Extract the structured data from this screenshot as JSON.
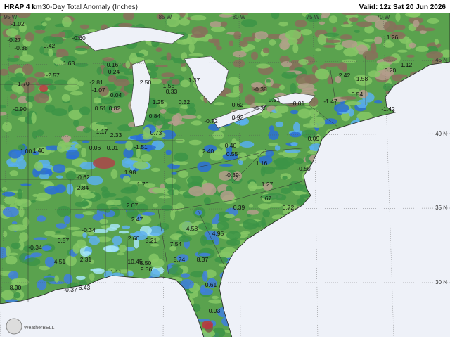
{
  "header": {
    "model": "HRAP 4 km",
    "product": "30-Day Total Anomaly (Inches)",
    "valid": "Valid: 12z Sat 20 Jun 2026"
  },
  "lon_labels": [
    "95 W",
    "85 W",
    "80 W",
    "75 W",
    "70 W"
  ],
  "lat_labels": [
    "45 N",
    "40 N",
    "35 N",
    "30 N"
  ],
  "logo": "WeatherBELL",
  "values": [
    "-1.02",
    "-0.27",
    "-0.38",
    "0.42",
    "-0.60",
    "1.63",
    "-2.57",
    "-2.81",
    "-1.07",
    "0.16",
    "0.24",
    "0.04",
    "2.50",
    "1.55",
    "0.33",
    "1.37",
    "1.25",
    "0.32",
    "-1.70",
    "-0.90",
    "0.51",
    "0.82",
    "0.84",
    "0.73",
    "1.17",
    "2.33",
    "-0.72",
    "0.92",
    "-0.36",
    "0.21",
    "0.01",
    "-0.38",
    "0.62",
    "-1.47",
    "-1.42",
    "0.54",
    "1.58",
    "0.20",
    "1.12",
    "1.26",
    "0.09",
    "-0.50",
    "2.42",
    "1.16",
    "0.55",
    "2.40",
    "0.40",
    "0.06",
    "0.01",
    "-1.51",
    "-0.39",
    "1.27",
    "1.67",
    "0.72",
    "0.39",
    "1.76",
    "2.07",
    "-0.62",
    "2.84",
    "1.98",
    "-0.34",
    "2.60",
    "2.47",
    "3.21",
    "7.54",
    "4.58",
    "4.95",
    "5.74",
    "8.37",
    "10.45",
    "5.50",
    "9.36",
    "2.31",
    "4.51",
    "-0.34",
    "0.57",
    "1.11",
    "-0.37",
    "8.00",
    "6.43",
    "0.93",
    "0.61",
    "1.46",
    "1.00"
  ]
}
